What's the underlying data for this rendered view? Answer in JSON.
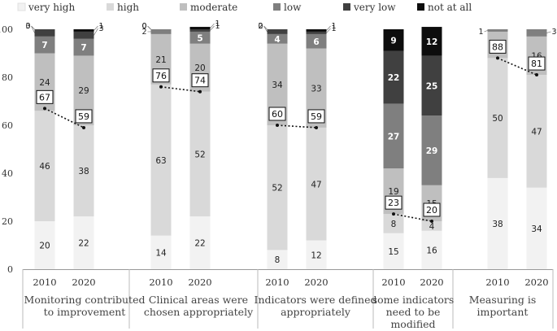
{
  "chart_data": {
    "type": "bar",
    "stacked": true,
    "legend": [
      "very high",
      "high",
      "moderate",
      "low",
      "very low",
      "not at all"
    ],
    "colors": {
      "very high": "#f2f2f2",
      "high": "#d9d9d9",
      "moderate": "#bfbfbf",
      "low": "#7f7f7f",
      "very low": "#404040",
      "not at all": "#0d0d0d"
    },
    "ylim": [
      0,
      100
    ],
    "yticks": [
      "0",
      "20",
      "40",
      "60",
      "80",
      "100"
    ],
    "groups": [
      {
        "label": "Monitoring contributed to improvement",
        "label_lines": [
          "Monitoring contributed",
          "to improvement"
        ],
        "bars": [
          {
            "year": "2010",
            "values": [
              20,
              46,
              24,
              7,
              3,
              0
            ],
            "labels": [
              "20",
              "46",
              "24",
              "7",
              "3",
              "0"
            ],
            "box": 67
          },
          {
            "year": "2020",
            "values": [
              22,
              38,
              29,
              7,
              3,
              1
            ],
            "labels": [
              "22",
              "38",
              "29",
              "7",
              "3",
              "1"
            ],
            "box": 59
          }
        ]
      },
      {
        "label": "Clinical areas were chosen appropriately",
        "label_lines": [
          "Clinical areas were",
          "chosen appropriately"
        ],
        "bars": [
          {
            "year": "2010",
            "values": [
              14,
              63,
              21,
              2,
              0,
              0
            ],
            "labels": [
              "14",
              "63",
              "21",
              "2",
              "0",
              "0"
            ],
            "box": 76
          },
          {
            "year": "2020",
            "values": [
              22,
              52,
              20,
              5,
              1,
              1
            ],
            "labels": [
              "22",
              "52",
              "20",
              "5",
              "1",
              "1"
            ],
            "box": 74
          }
        ]
      },
      {
        "label": "Indicators were defined appropriately",
        "label_lines": [
          "Indicators were defined",
          "appropriately"
        ],
        "bars": [
          {
            "year": "2010",
            "values": [
              8,
              52,
              34,
              4,
              2,
              0
            ],
            "labels": [
              "8",
              "52",
              "34",
              "4",
              "2",
              "0"
            ],
            "box": 60
          },
          {
            "year": "2020",
            "values": [
              12,
              47,
              33,
              6,
              1,
              1
            ],
            "labels": [
              "12",
              "47",
              "33",
              "6",
              "1",
              "1"
            ],
            "box": 59
          }
        ]
      },
      {
        "label": "some indicators need to be modified",
        "label_lines": [
          "some indicators",
          "need to be",
          "modified"
        ],
        "bars": [
          {
            "year": "2010",
            "values": [
              15,
              8,
              19,
              27,
              22,
              9
            ],
            "labels": [
              "15",
              "8",
              "19",
              "27",
              "22",
              "9"
            ],
            "box": 23
          },
          {
            "year": "2020",
            "values": [
              16,
              4,
              15,
              29,
              25,
              12
            ],
            "labels": [
              "16",
              "4",
              "15",
              "29",
              "25",
              "12"
            ],
            "box": 20
          }
        ]
      },
      {
        "label": "Measuring is important",
        "label_lines": [
          "Measuring is",
          "important"
        ],
        "bars": [
          {
            "year": "2010",
            "values": [
              38,
              50,
              11,
              1,
              0,
              0
            ],
            "labels": [
              "38",
              "50",
              "",
              "1",
              "",
              ""
            ],
            "box": 88
          },
          {
            "year": "2020",
            "values": [
              34,
              47,
              16,
              3,
              0,
              0
            ],
            "labels": [
              "34",
              "47",
              "16",
              "3",
              "",
              ""
            ],
            "box": 81
          }
        ]
      }
    ]
  }
}
